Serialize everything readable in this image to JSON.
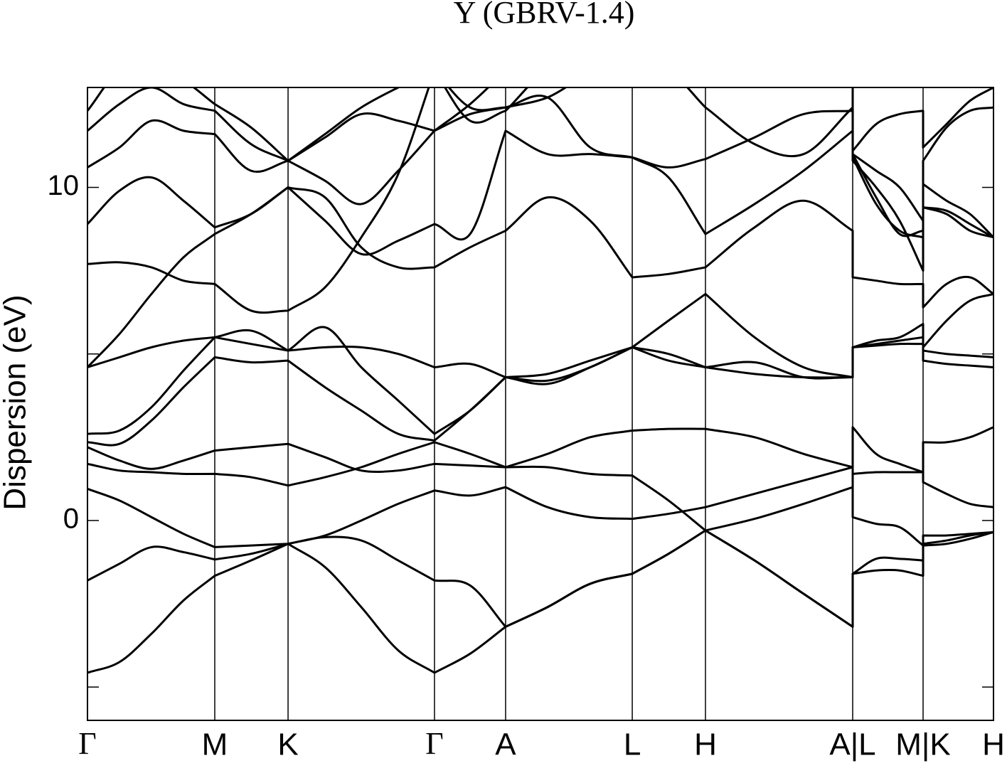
{
  "chart_data": {
    "type": "line",
    "title": "Y (GBRV-1.4)",
    "y_label": "Dispersion (eV)",
    "xlim": [
      0,
      1
    ],
    "ylim": [
      -6,
      13
    ],
    "yticks": [
      0,
      10
    ],
    "minor_yticks": [
      -5,
      5
    ],
    "xticks": [
      {
        "value": 0,
        "label": "Γ"
      },
      {
        "value": 0.1405,
        "label": "M"
      },
      {
        "value": 0.2214,
        "label": "K"
      },
      {
        "value": 0.383,
        "label": "Γ"
      },
      {
        "value": 0.4615,
        "label": "A"
      },
      {
        "value": 0.6013,
        "label": "L"
      },
      {
        "value": 0.6821,
        "label": "H"
      },
      {
        "value": 0.8446,
        "label": "A|L"
      },
      {
        "value": 0.9223,
        "label": "M|K"
      },
      {
        "value": 1,
        "label": "H"
      }
    ],
    "x": [
      0,
      0.0353,
      0.0706,
      0.106,
      0.1405,
      0.1805,
      0.2214,
      0.2622,
      0.3022,
      0.343,
      0.383,
      0.4223,
      0.4615,
      0.5078,
      0.5549,
      0.6013,
      0.6413,
      0.6821,
      0.7363,
      0.7904,
      0.8446,
      0.8446,
      0.8705,
      0.8964,
      0.9223,
      0.9223,
      0.9482,
      0.9741,
      1
    ],
    "series": [
      {
        "color": "#000000",
        "values": [
          -4.57,
          -4.25,
          -3.4,
          -2.4,
          -1.66,
          -1.2,
          -0.7,
          -1.4,
          -2.6,
          -3.9,
          -4.57,
          -4.0,
          -3.19,
          -2.6,
          -1.9,
          -1.6,
          -1.0,
          -0.3,
          -1.2,
          -2.2,
          -3.19,
          -1.6,
          -1.5,
          -1.5,
          -1.66,
          -0.7,
          -0.6,
          -0.45,
          -0.35
        ]
      },
      {
        "color": "#000000",
        "values": [
          -1.8,
          -1.3,
          -0.8,
          -0.95,
          -1.17,
          -1.0,
          -0.7,
          -0.5,
          -0.6,
          -1.2,
          -1.8,
          -1.95,
          -3.19,
          -2.6,
          -1.9,
          -1.6,
          -1.0,
          -0.3,
          -1.2,
          -2.2,
          -3.19,
          -1.6,
          -1.15,
          -1.15,
          -1.2,
          -0.75,
          -0.7,
          -0.55,
          -0.35
        ]
      },
      {
        "color": "#000000",
        "values": [
          0.95,
          0.6,
          0.1,
          -0.4,
          -0.8,
          -0.75,
          -0.7,
          -0.45,
          0.0,
          0.5,
          0.9,
          0.75,
          1.0,
          0.4,
          0.1,
          0.05,
          0.2,
          0.4,
          0.8,
          1.2,
          1.6,
          0.1,
          -0.1,
          -0.2,
          -0.75,
          -0.45,
          -0.45,
          -0.4,
          -0.35
        ]
      },
      {
        "color": "#000000",
        "values": [
          1.7,
          1.5,
          1.45,
          1.4,
          1.4,
          1.3,
          1.05,
          1.3,
          1.6,
          2.0,
          2.35,
          2.0,
          1.6,
          1.6,
          1.4,
          1.35,
          0.6,
          -0.3,
          0.05,
          0.5,
          1.0,
          1.4,
          1.45,
          1.45,
          1.45,
          1.15,
          0.8,
          0.5,
          0.4
        ]
      },
      {
        "color": "#000000",
        "values": [
          2.2,
          1.8,
          1.55,
          1.8,
          2.1,
          2.2,
          2.3,
          1.9,
          1.5,
          1.5,
          1.7,
          1.65,
          1.6,
          2.0,
          2.5,
          2.7,
          2.75,
          2.75,
          2.5,
          2.0,
          1.6,
          2.8,
          2.0,
          1.7,
          1.45,
          2.35,
          2.35,
          2.5,
          2.8
        ]
      },
      {
        "color": "#000000",
        "values": [
          2.35,
          2.3,
          3.0,
          4.0,
          4.9,
          4.75,
          4.8,
          4.0,
          3.3,
          2.6,
          2.4,
          3.3,
          4.3,
          4.2,
          4.6,
          5.2,
          5.0,
          4.6,
          4.4,
          4.3,
          4.3,
          5.2,
          5.3,
          5.4,
          5.5,
          4.8,
          4.7,
          4.65,
          4.6
        ]
      },
      {
        "color": "#000000",
        "values": [
          2.6,
          2.7,
          3.4,
          4.5,
          5.5,
          5.7,
          5.1,
          5.8,
          4.6,
          3.6,
          2.6,
          3.3,
          4.3,
          4.4,
          4.8,
          5.2,
          6.0,
          6.8,
          5.5,
          4.6,
          4.3,
          5.2,
          5.4,
          5.5,
          5.9,
          5.1,
          5.0,
          4.95,
          4.9
        ]
      },
      {
        "color": "#000000",
        "values": [
          4.6,
          4.9,
          5.2,
          5.4,
          5.5,
          5.3,
          5.1,
          5.2,
          5.2,
          5.0,
          4.6,
          4.7,
          4.3,
          4.1,
          4.6,
          5.2,
          4.8,
          4.6,
          4.75,
          4.3,
          4.3,
          5.2,
          5.25,
          5.3,
          5.3,
          5.2,
          6.0,
          6.6,
          6.8
        ]
      },
      {
        "color": "#000000",
        "values": [
          4.6,
          5.6,
          6.8,
          7.9,
          8.6,
          9.2,
          10.0,
          9.7,
          8.2,
          7.6,
          7.6,
          8.2,
          8.7,
          9.7,
          9.0,
          7.3,
          7.4,
          7.6,
          8.8,
          9.6,
          8.7,
          7.3,
          7.2,
          7.1,
          7.1,
          6.4,
          7.1,
          7.3,
          6.8
        ]
      },
      {
        "color": "#000000",
        "values": [
          7.7,
          7.75,
          7.6,
          7.2,
          7.1,
          6.3,
          6.3,
          7.0,
          8.5,
          10.4,
          13.5,
          12.4,
          12.4,
          12.7,
          13.4,
          13.5,
          13.5,
          12.4,
          11.3,
          11.0,
          12.4,
          10.9,
          9.5,
          8.7,
          8.5,
          10.1,
          9.6,
          9.2,
          8.5
        ]
      },
      {
        "color": "#000000",
        "values": [
          8.9,
          9.9,
          10.3,
          9.6,
          8.8,
          9.2,
          10.0,
          9.0,
          8.0,
          8.4,
          8.9,
          8.6,
          11.7,
          11.0,
          11.0,
          10.9,
          10.3,
          8.6,
          9.5,
          10.5,
          11.7,
          11.0,
          10.5,
          10.0,
          9.0,
          9.4,
          9.3,
          8.9,
          8.5
        ]
      },
      {
        "color": "#000000",
        "values": [
          10.6,
          11.2,
          12.0,
          11.7,
          11.6,
          10.5,
          10.8,
          11.5,
          12.2,
          12.0,
          11.7,
          12.2,
          12.4,
          12.7,
          11.2,
          10.9,
          10.6,
          10.85,
          11.5,
          12.2,
          12.3,
          10.8,
          10.0,
          9.0,
          7.5,
          10.8,
          11.8,
          12.3,
          12.4
        ]
      },
      {
        "color": "#000000",
        "values": [
          11.7,
          12.5,
          13.0,
          12.5,
          12.3,
          11.3,
          10.8,
          11.6,
          12.4,
          13.0,
          13.5,
          12.0,
          12.3,
          13.5,
          13.5,
          13.5,
          13.5,
          13.5,
          13.5,
          13.5,
          13.5,
          11.1,
          11.9,
          12.2,
          12.3,
          11.2,
          11.9,
          12.6,
          13.0
        ]
      },
      {
        "color": "#000000",
        "values": [
          12.3,
          13.5,
          13.5,
          13.2,
          12.5,
          11.8,
          10.8,
          10.2,
          9.5,
          10.5,
          11.7,
          12.5,
          13.5,
          13.5,
          13.5,
          13.5,
          13.5,
          13.5,
          13.5,
          13.5,
          13.5,
          11.0,
          9.7,
          8.6,
          8.7,
          9.4,
          9.2,
          8.7,
          8.5
        ]
      }
    ]
  }
}
